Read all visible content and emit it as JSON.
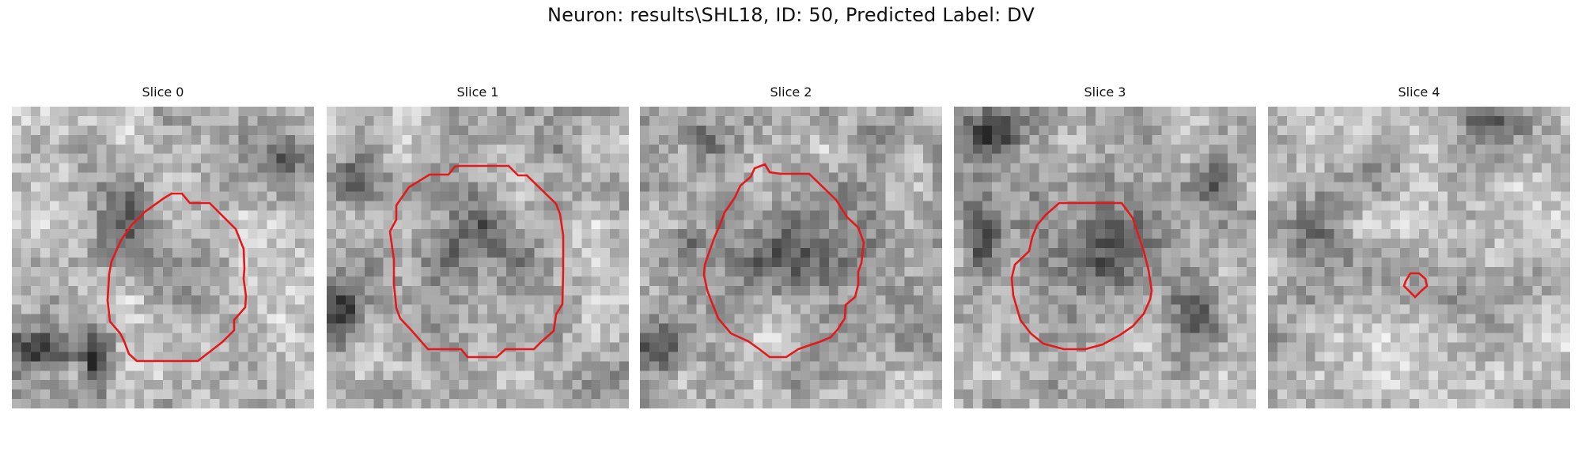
{
  "figure": {
    "title": "Neuron: results\\SHL18, ID: 50, Predicted Label: DV"
  },
  "colors": {
    "contour": "#e31a1c",
    "background": "#ffffff"
  },
  "panels": [
    {
      "title": "Slice 0"
    },
    {
      "title": "Slice 1"
    },
    {
      "title": "Slice 2"
    },
    {
      "title": "Slice 3"
    },
    {
      "title": "Slice 4"
    }
  ]
}
